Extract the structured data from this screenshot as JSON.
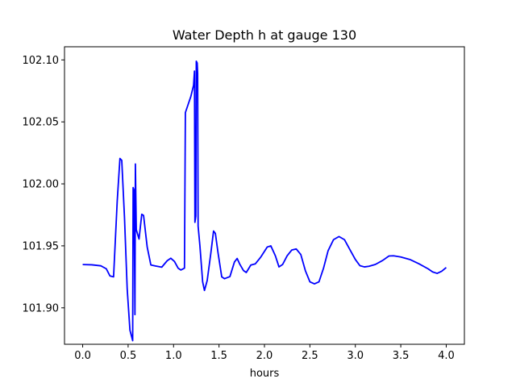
{
  "chart_data": {
    "type": "line",
    "title": "Water Depth h at gauge 130",
    "xlabel": "hours",
    "ylabel": "",
    "xlim": [
      -0.2,
      4.2
    ],
    "ylim": [
      101.8706,
      102.1106
    ],
    "x_ticks": [
      0.0,
      0.5,
      1.0,
      1.5,
      2.0,
      2.5,
      3.0,
      3.5,
      4.0
    ],
    "x_tick_labels": [
      "0.0",
      "0.5",
      "1.0",
      "1.5",
      "2.0",
      "2.5",
      "3.0",
      "3.5",
      "4.0"
    ],
    "y_ticks": [
      101.9,
      101.95,
      102.0,
      102.05,
      102.1
    ],
    "y_tick_labels": [
      "101.90",
      "101.95",
      "102.00",
      "102.05",
      "102.10"
    ],
    "grid": false,
    "legend": "none",
    "series": [
      {
        "color": "#0000ff",
        "points": [
          [
            0.0,
            101.9349
          ],
          [
            0.1,
            101.9347
          ],
          [
            0.2,
            101.9339
          ],
          [
            0.26,
            101.9315
          ],
          [
            0.3,
            101.9257
          ],
          [
            0.34,
            101.925
          ],
          [
            0.38,
            101.986
          ],
          [
            0.41,
            102.0205
          ],
          [
            0.43,
            102.019
          ],
          [
            0.46,
            101.973
          ],
          [
            0.49,
            101.915
          ],
          [
            0.52,
            101.882
          ],
          [
            0.55,
            101.8735
          ],
          [
            0.555,
            101.997
          ],
          [
            0.565,
            101.995
          ],
          [
            0.575,
            101.8945
          ],
          [
            0.58,
            102.016
          ],
          [
            0.59,
            101.963
          ],
          [
            0.62,
            101.9555
          ],
          [
            0.65,
            101.9755
          ],
          [
            0.67,
            101.9745
          ],
          [
            0.71,
            101.949
          ],
          [
            0.75,
            101.9346
          ],
          [
            0.8,
            101.9338
          ],
          [
            0.87,
            101.9328
          ],
          [
            0.93,
            101.938
          ],
          [
            0.97,
            101.94
          ],
          [
            1.01,
            101.9374
          ],
          [
            1.05,
            101.932
          ],
          [
            1.08,
            101.9305
          ],
          [
            1.12,
            101.932
          ],
          [
            1.13,
            102.0575
          ],
          [
            1.19,
            102.0705
          ],
          [
            1.22,
            102.0795
          ],
          [
            1.23,
            102.091
          ],
          [
            1.235,
            101.969
          ],
          [
            1.245,
            101.974
          ],
          [
            1.25,
            102.099
          ],
          [
            1.26,
            102.0975
          ],
          [
            1.265,
            102.089
          ],
          [
            1.27,
            101.966
          ],
          [
            1.29,
            101.95
          ],
          [
            1.32,
            101.921
          ],
          [
            1.34,
            101.914
          ],
          [
            1.37,
            101.922
          ],
          [
            1.41,
            101.944
          ],
          [
            1.44,
            101.962
          ],
          [
            1.46,
            101.96
          ],
          [
            1.49,
            101.944
          ],
          [
            1.53,
            101.925
          ],
          [
            1.56,
            101.9235
          ],
          [
            1.62,
            101.9252
          ],
          [
            1.67,
            101.937
          ],
          [
            1.7,
            101.9398
          ],
          [
            1.73,
            101.935
          ],
          [
            1.77,
            101.93
          ],
          [
            1.8,
            101.9285
          ],
          [
            1.85,
            101.9345
          ],
          [
            1.9,
            101.9355
          ],
          [
            1.96,
            101.941
          ],
          [
            2.03,
            101.949
          ],
          [
            2.07,
            101.95
          ],
          [
            2.12,
            101.942
          ],
          [
            2.16,
            101.933
          ],
          [
            2.2,
            101.935
          ],
          [
            2.25,
            101.942
          ],
          [
            2.3,
            101.9466
          ],
          [
            2.35,
            101.9475
          ],
          [
            2.4,
            101.943
          ],
          [
            2.45,
            101.93
          ],
          [
            2.5,
            101.921
          ],
          [
            2.55,
            101.9193
          ],
          [
            2.6,
            101.921
          ],
          [
            2.65,
            101.932
          ],
          [
            2.7,
            101.946
          ],
          [
            2.76,
            101.955
          ],
          [
            2.82,
            101.9575
          ],
          [
            2.88,
            101.955
          ],
          [
            2.94,
            101.947
          ],
          [
            3.0,
            101.939
          ],
          [
            3.05,
            101.934
          ],
          [
            3.1,
            101.933
          ],
          [
            3.15,
            101.9335
          ],
          [
            3.22,
            101.935
          ],
          [
            3.3,
            101.9382
          ],
          [
            3.37,
            101.9418
          ],
          [
            3.42,
            101.942
          ],
          [
            3.5,
            101.941
          ],
          [
            3.6,
            101.939
          ],
          [
            3.7,
            101.9355
          ],
          [
            3.8,
            101.9315
          ],
          [
            3.85,
            101.929
          ],
          [
            3.9,
            101.9278
          ],
          [
            3.95,
            101.9295
          ],
          [
            4.0,
            101.9325
          ]
        ]
      }
    ]
  }
}
